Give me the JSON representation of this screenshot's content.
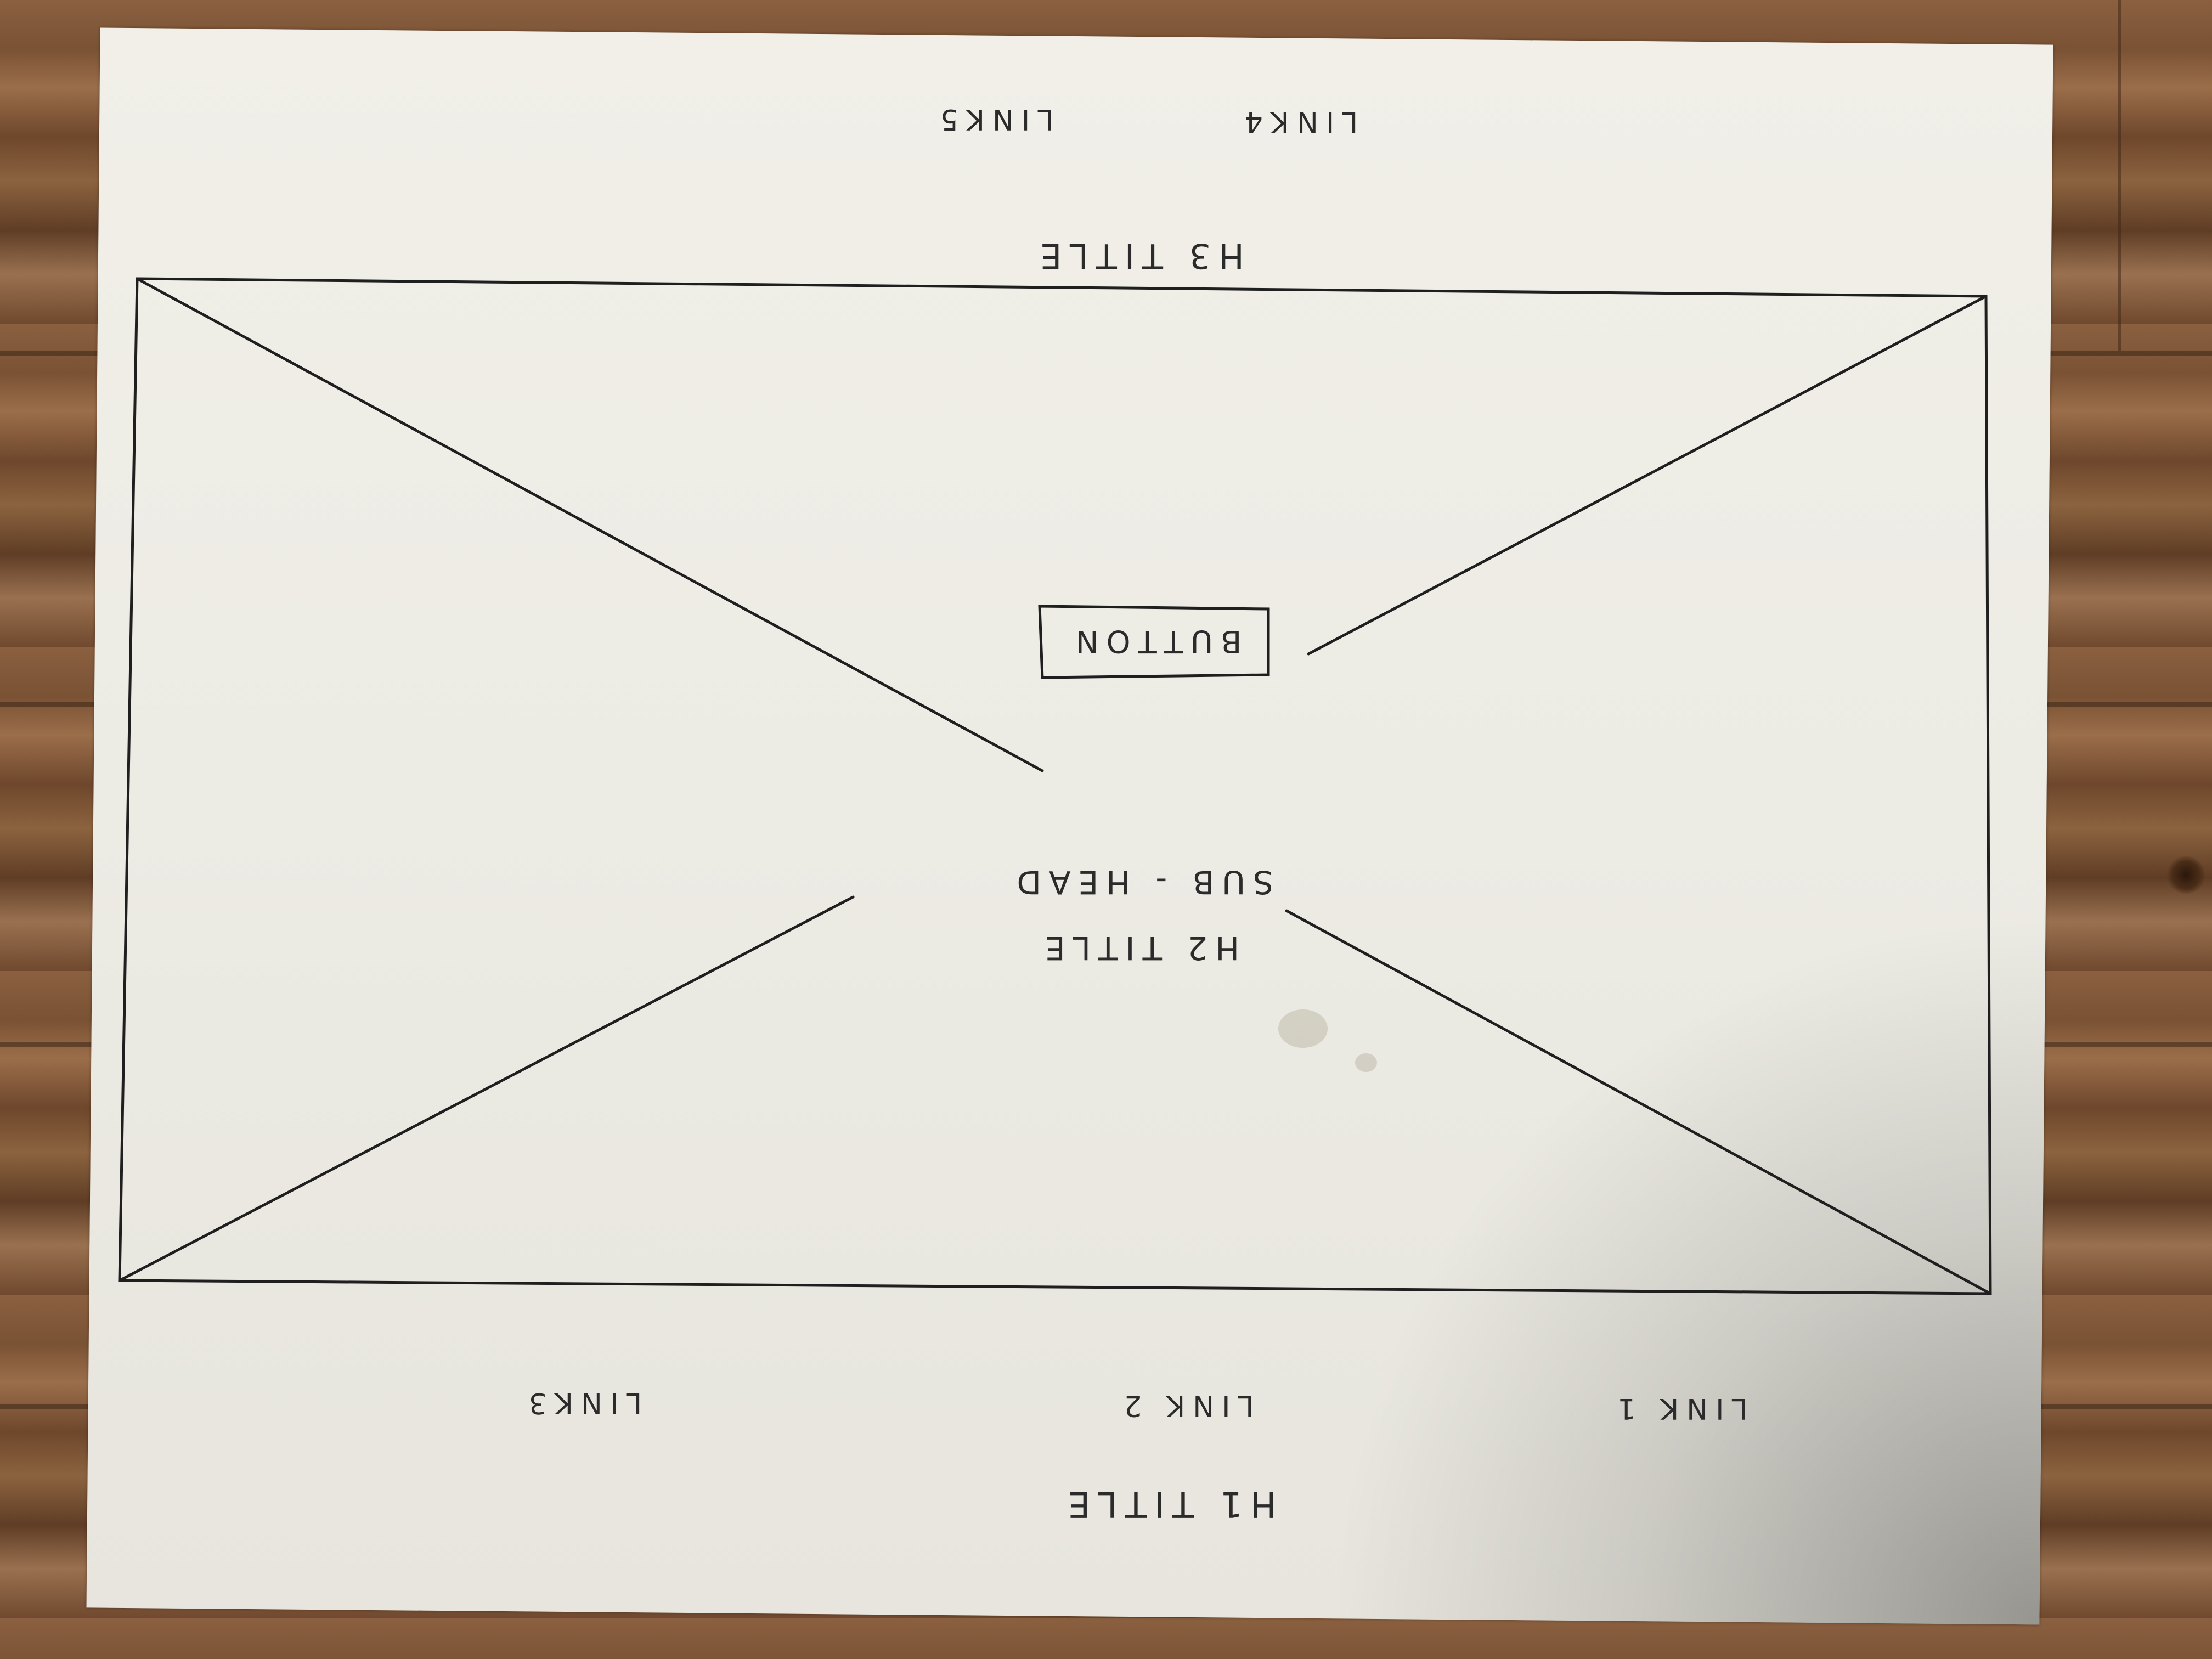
{
  "labels": {
    "h1": "H1 TITLE",
    "link1": "LINK 1",
    "link2": "LINK 2",
    "link3": "LINK3",
    "h2": "H2 TITLE",
    "subhead": "SUB - HEAD",
    "button": "BUTTON",
    "h3": "H3 TITLE",
    "link4": "LINK4",
    "link5": "LINK5"
  },
  "colors": {
    "ink": "#2b2b2b",
    "paper": "#eeede6",
    "wood": "#7a5234"
  }
}
